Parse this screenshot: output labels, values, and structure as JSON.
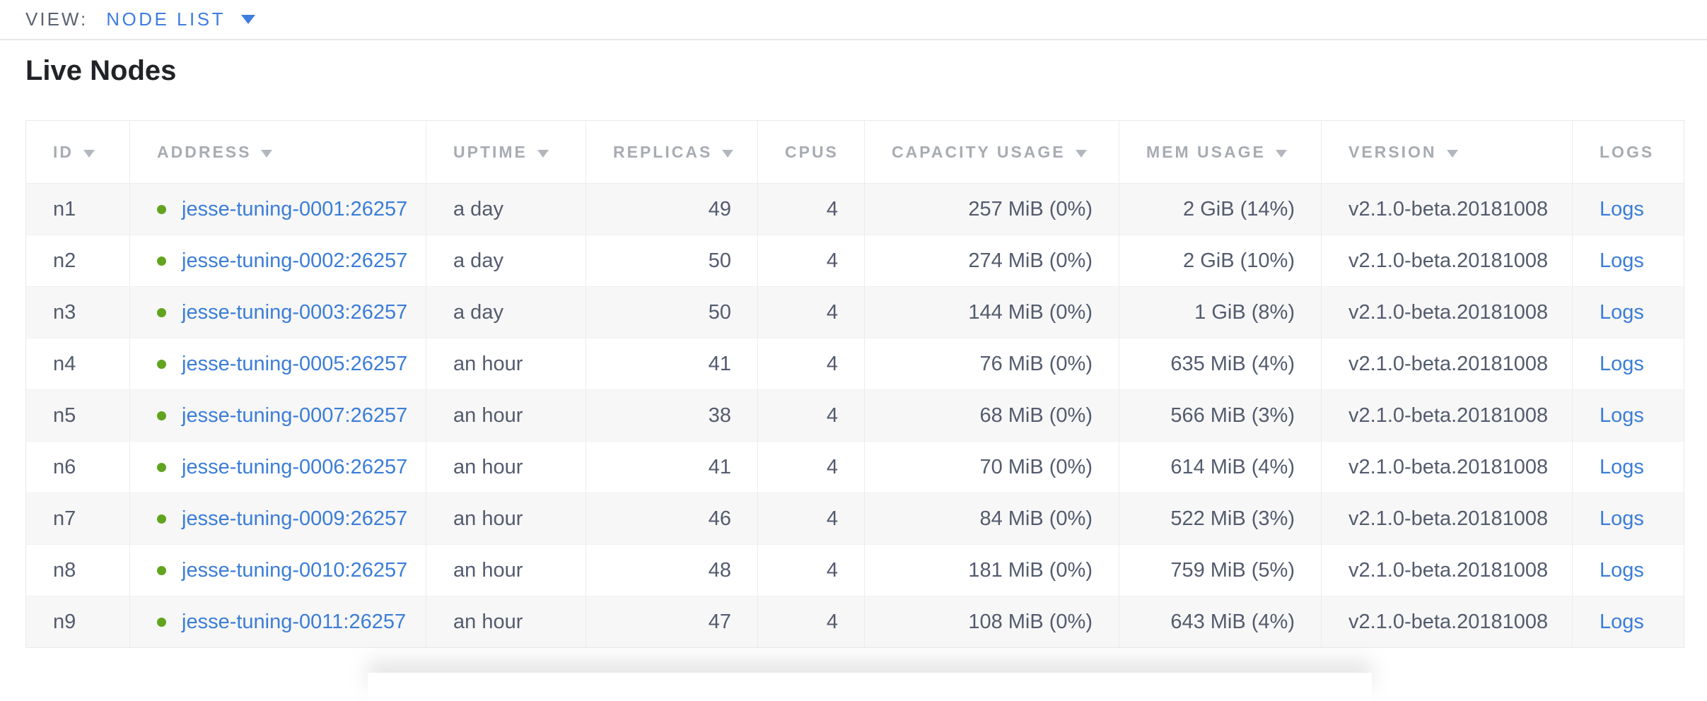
{
  "view_bar": {
    "label": "VIEW:",
    "selected": "NODE LIST",
    "dropdown_icon": "triangle-down"
  },
  "page": {
    "title": "Live Nodes"
  },
  "colors": {
    "link_blue": "#3b7dd8",
    "accent_blue": "#3f7de0",
    "status_green": "#62a420",
    "header_gray": "#a7acb2",
    "cell_text": "#535b6e",
    "row_stripe": "#f7f7f7",
    "table_border": "#e9e9e9"
  },
  "table": {
    "columns": [
      {
        "key": "id",
        "label": "ID",
        "sortable": true,
        "sort_icon": "triangle-down"
      },
      {
        "key": "address",
        "label": "ADDRESS",
        "sortable": true,
        "sort_icon": "triangle-down"
      },
      {
        "key": "uptime",
        "label": "UPTIME",
        "sortable": true,
        "sort_icon": "triangle-down"
      },
      {
        "key": "replicas",
        "label": "REPLICAS",
        "sortable": true,
        "sort_icon": "triangle-down"
      },
      {
        "key": "cpus",
        "label": "CPUS",
        "sortable": false
      },
      {
        "key": "capacity",
        "label": "CAPACITY USAGE",
        "sortable": true,
        "sort_icon": "triangle-down"
      },
      {
        "key": "mem",
        "label": "MEM USAGE",
        "sortable": true,
        "sort_icon": "triangle-down"
      },
      {
        "key": "version",
        "label": "VERSION",
        "sortable": true,
        "sort_icon": "triangle-down"
      },
      {
        "key": "logs",
        "label": "LOGS",
        "sortable": false
      }
    ],
    "rows": [
      {
        "id": "n1",
        "status": "healthy",
        "address": "jesse-tuning-0001:26257",
        "uptime": "a day",
        "replicas": "49",
        "cpus": "4",
        "capacity": "257 MiB (0%)",
        "mem": "2 GiB (14%)",
        "version": "v2.1.0-beta.20181008",
        "logs": "Logs"
      },
      {
        "id": "n2",
        "status": "healthy",
        "address": "jesse-tuning-0002:26257",
        "uptime": "a day",
        "replicas": "50",
        "cpus": "4",
        "capacity": "274 MiB (0%)",
        "mem": "2 GiB (10%)",
        "version": "v2.1.0-beta.20181008",
        "logs": "Logs"
      },
      {
        "id": "n3",
        "status": "healthy",
        "address": "jesse-tuning-0003:26257",
        "uptime": "a day",
        "replicas": "50",
        "cpus": "4",
        "capacity": "144 MiB (0%)",
        "mem": "1 GiB (8%)",
        "version": "v2.1.0-beta.20181008",
        "logs": "Logs"
      },
      {
        "id": "n4",
        "status": "healthy",
        "address": "jesse-tuning-0005:26257",
        "uptime": "an hour",
        "replicas": "41",
        "cpus": "4",
        "capacity": "76 MiB (0%)",
        "mem": "635 MiB (4%)",
        "version": "v2.1.0-beta.20181008",
        "logs": "Logs"
      },
      {
        "id": "n5",
        "status": "healthy",
        "address": "jesse-tuning-0007:26257",
        "uptime": "an hour",
        "replicas": "38",
        "cpus": "4",
        "capacity": "68 MiB (0%)",
        "mem": "566 MiB (3%)",
        "version": "v2.1.0-beta.20181008",
        "logs": "Logs"
      },
      {
        "id": "n6",
        "status": "healthy",
        "address": "jesse-tuning-0006:26257",
        "uptime": "an hour",
        "replicas": "41",
        "cpus": "4",
        "capacity": "70 MiB (0%)",
        "mem": "614 MiB (4%)",
        "version": "v2.1.0-beta.20181008",
        "logs": "Logs"
      },
      {
        "id": "n7",
        "status": "healthy",
        "address": "jesse-tuning-0009:26257",
        "uptime": "an hour",
        "replicas": "46",
        "cpus": "4",
        "capacity": "84 MiB (0%)",
        "mem": "522 MiB (3%)",
        "version": "v2.1.0-beta.20181008",
        "logs": "Logs"
      },
      {
        "id": "n8",
        "status": "healthy",
        "address": "jesse-tuning-0010:26257",
        "uptime": "an hour",
        "replicas": "48",
        "cpus": "4",
        "capacity": "181 MiB (0%)",
        "mem": "759 MiB (5%)",
        "version": "v2.1.0-beta.20181008",
        "logs": "Logs"
      },
      {
        "id": "n9",
        "status": "healthy",
        "address": "jesse-tuning-0011:26257",
        "uptime": "an hour",
        "replicas": "47",
        "cpus": "4",
        "capacity": "108 MiB (0%)",
        "mem": "643 MiB (4%)",
        "version": "v2.1.0-beta.20181008",
        "logs": "Logs"
      }
    ]
  }
}
